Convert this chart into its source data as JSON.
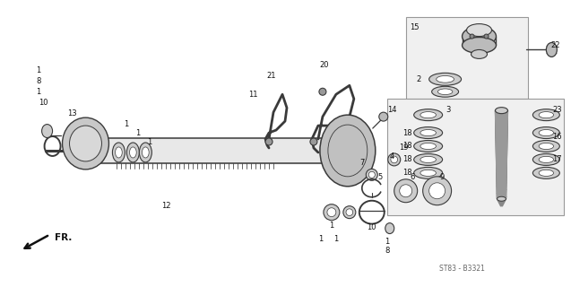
{
  "bg": "#ffffff",
  "dc": "#3a3a3a",
  "lc": "#888888",
  "gc": "#aaaaaa",
  "watermark": "ST83 - B3321",
  "figsize": [
    6.37,
    3.2
  ],
  "dpi": 100
}
